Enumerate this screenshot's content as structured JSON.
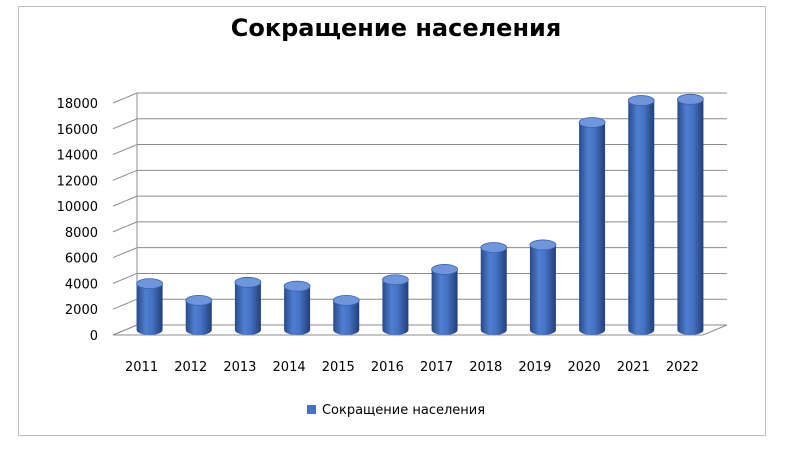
{
  "chart_data": {
    "type": "bar",
    "style": "3d-cylinder",
    "title": "Сокращение населения",
    "categories": [
      "2011",
      "2012",
      "2013",
      "2014",
      "2015",
      "2016",
      "2017",
      "2018",
      "2019",
      "2020",
      "2021",
      "2022"
    ],
    "series": [
      {
        "name": "Сокращение населения",
        "color": "#4472c4",
        "values": [
          3600,
          2300,
          3700,
          3400,
          2300,
          3900,
          4700,
          6400,
          6600,
          16100,
          17800,
          17900
        ]
      }
    ],
    "yticks": [
      "0",
      "2000",
      "4000",
      "6000",
      "8000",
      "10000",
      "12000",
      "14000",
      "16000",
      "18000"
    ],
    "ylim": [
      0,
      18000
    ],
    "grid": true,
    "legend": "bottom"
  }
}
